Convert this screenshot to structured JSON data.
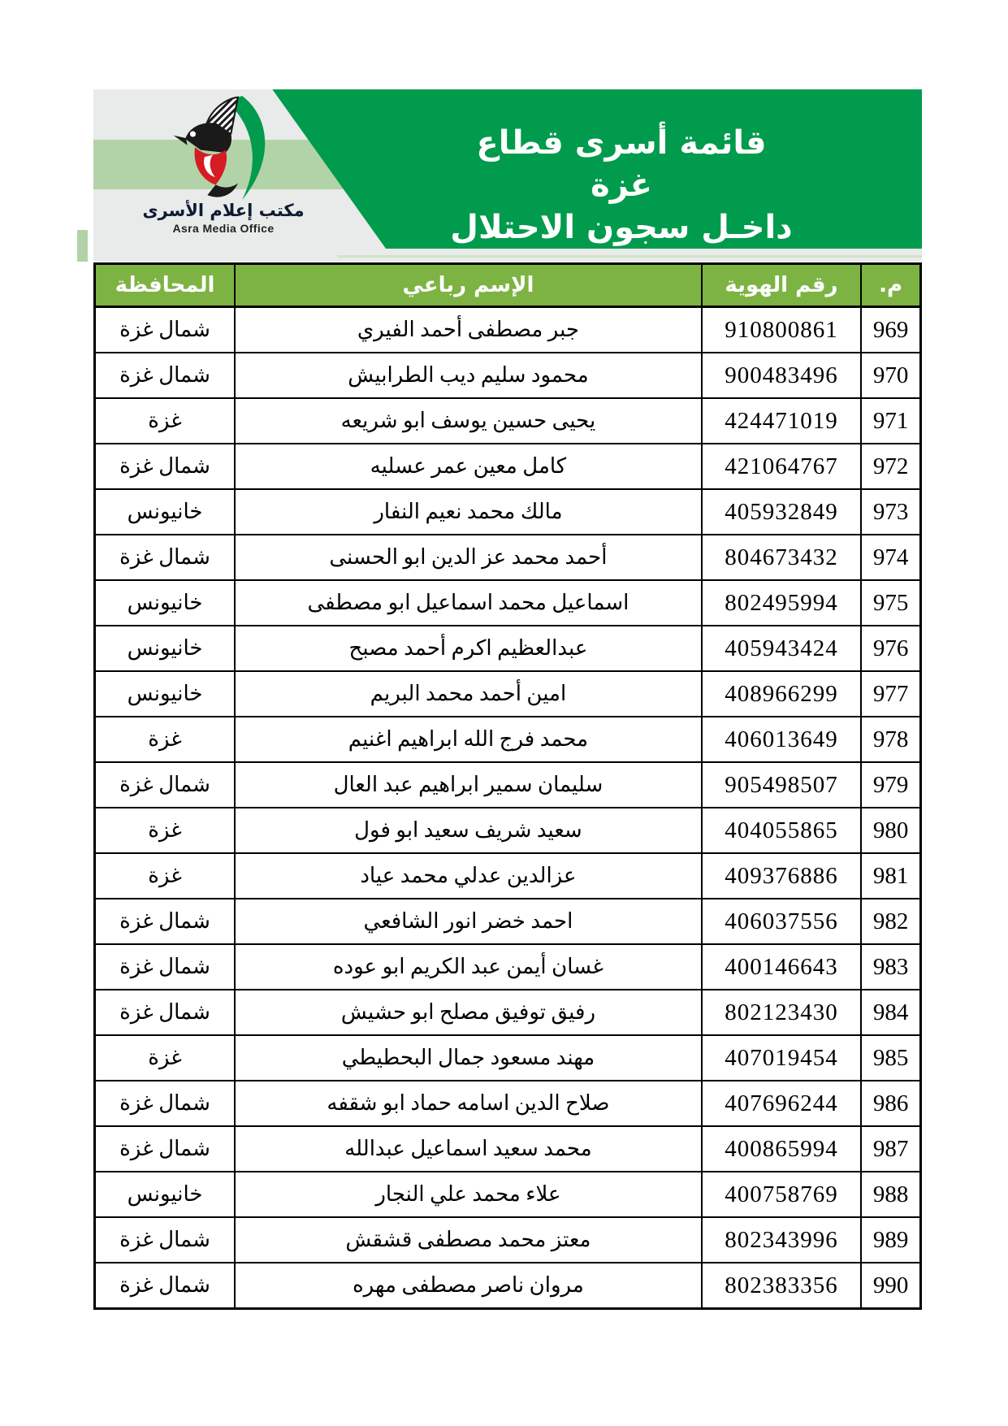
{
  "banner": {
    "title_line1": "قائمة أسرى قطاع غزة",
    "title_line2": "داخـل سجون الاحتلال",
    "logo_caption_ar": "مكتب إعلام الأسرى",
    "logo_caption_en": "Asra Media Office"
  },
  "colors": {
    "dark_green": "#009B4C",
    "header_green": "#7DB343",
    "light_green": "#B2D3A8",
    "banner_gray": "#E9EAEA",
    "logo_red": "#D31D23",
    "border": "#000000"
  },
  "table": {
    "columns": [
      {
        "key": "idx",
        "label": "م."
      },
      {
        "key": "id",
        "label": "رقم الهوية"
      },
      {
        "key": "name",
        "label": "الإسم رباعي"
      },
      {
        "key": "gov",
        "label": "المحافظة"
      }
    ],
    "rows": [
      {
        "idx": "969",
        "id": "910800861",
        "name": "جبر مصطفى أحمد الفيري",
        "gov": "شمال غزة"
      },
      {
        "idx": "970",
        "id": "900483496",
        "name": "محمود سليم ديب الطرابيش",
        "gov": "شمال غزة"
      },
      {
        "idx": "971",
        "id": "424471019",
        "name": "يحيى حسين يوسف ابو شريعه",
        "gov": "غزة"
      },
      {
        "idx": "972",
        "id": "421064767",
        "name": "كامل معين عمر عسليه",
        "gov": "شمال غزة"
      },
      {
        "idx": "973",
        "id": "405932849",
        "name": "مالك محمد نعيم النفار",
        "gov": "خانيونس"
      },
      {
        "idx": "974",
        "id": "804673432",
        "name": "أحمد محمد عز الدين ابو الحسنى",
        "gov": "شمال غزة"
      },
      {
        "idx": "975",
        "id": "802495994",
        "name": "اسماعيل محمد اسماعيل ابو مصطفى",
        "gov": "خانيونس"
      },
      {
        "idx": "976",
        "id": "405943424",
        "name": "عبدالعظيم اكرم أحمد مصبح",
        "gov": "خانيونس"
      },
      {
        "idx": "977",
        "id": "408966299",
        "name": "امين أحمد محمد البريم",
        "gov": "خانيونس"
      },
      {
        "idx": "978",
        "id": "406013649",
        "name": "محمد فرج الله ابراهيم اغنيم",
        "gov": "غزة"
      },
      {
        "idx": "979",
        "id": "905498507",
        "name": "سليمان سمير ابراهيم عبد العال",
        "gov": "شمال غزة"
      },
      {
        "idx": "980",
        "id": "404055865",
        "name": "سعيد شريف سعيد ابو فول",
        "gov": "غزة"
      },
      {
        "idx": "981",
        "id": "409376886",
        "name": "عزالدين عدلي محمد عياد",
        "gov": "غزة"
      },
      {
        "idx": "982",
        "id": "406037556",
        "name": "احمد خضر انور الشافعي",
        "gov": "شمال غزة"
      },
      {
        "idx": "983",
        "id": "400146643",
        "name": "غسان أيمن عبد الكريم ابو عوده",
        "gov": "شمال غزة"
      },
      {
        "idx": "984",
        "id": "802123430",
        "name": "رفيق توفيق مصلح ابو حشيش",
        "gov": "شمال غزة"
      },
      {
        "idx": "985",
        "id": "407019454",
        "name": "مهند مسعود جمال البحطيطي",
        "gov": "غزة"
      },
      {
        "idx": "986",
        "id": "407696244",
        "name": "صلاح الدين اسامه حماد ابو شقفه",
        "gov": "شمال غزة"
      },
      {
        "idx": "987",
        "id": "400865994",
        "name": "محمد سعيد اسماعيل عبدالله",
        "gov": "شمال غزة"
      },
      {
        "idx": "988",
        "id": "400758769",
        "name": "علاء محمد علي النجار",
        "gov": "خانيونس"
      },
      {
        "idx": "989",
        "id": "802343996",
        "name": "معتز محمد مصطفى قشقش",
        "gov": "شمال غزة"
      },
      {
        "idx": "990",
        "id": "802383356",
        "name": "مروان ناصر مصطفى مهره",
        "gov": "شمال غزة"
      }
    ]
  }
}
